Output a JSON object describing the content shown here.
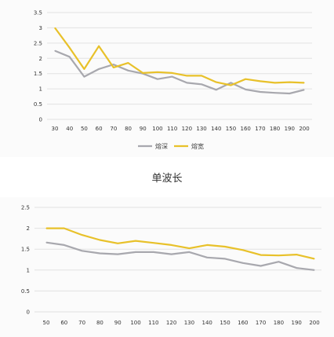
{
  "middle_title": "单波长",
  "colors": {
    "series1": "#a8a8ae",
    "series2": "#e8c12a",
    "grid": "#e2e2e2"
  },
  "chart_data": [
    {
      "type": "line",
      "x": [
        30,
        40,
        50,
        60,
        70,
        80,
        90,
        100,
        110,
        120,
        130,
        140,
        150,
        160,
        170,
        180,
        190,
        200
      ],
      "ylim": [
        0,
        3.5
      ],
      "yticks": [
        0,
        0.5,
        1,
        1.5,
        2,
        2.5,
        3,
        3.5
      ],
      "grid": true,
      "legend_position": "bottom",
      "series": [
        {
          "name": "熔深",
          "values": [
            2.25,
            2.05,
            1.4,
            1.65,
            1.8,
            1.6,
            1.5,
            1.32,
            1.4,
            1.2,
            1.15,
            0.97,
            1.2,
            0.98,
            0.9,
            0.87,
            0.85,
            0.97
          ]
        },
        {
          "name": "熔宽",
          "values": [
            3.0,
            2.35,
            1.65,
            2.4,
            1.7,
            1.85,
            1.52,
            1.55,
            1.52,
            1.43,
            1.43,
            1.22,
            1.12,
            1.32,
            1.25,
            1.2,
            1.22,
            1.2
          ]
        }
      ]
    },
    {
      "type": "line",
      "x": [
        50,
        60,
        70,
        80,
        90,
        100,
        110,
        120,
        130,
        140,
        150,
        160,
        170,
        180,
        190,
        200
      ],
      "ylim": [
        0,
        2.5
      ],
      "yticks": [
        0,
        0.5,
        1,
        1.5,
        2,
        2.5
      ],
      "grid": true,
      "series": [
        {
          "values": [
            1.66,
            1.6,
            1.46,
            1.4,
            1.38,
            1.43,
            1.43,
            1.38,
            1.43,
            1.3,
            1.27,
            1.17,
            1.1,
            1.2,
            1.05,
            1.0
          ]
        },
        {
          "values": [
            2.0,
            2.0,
            1.84,
            1.72,
            1.64,
            1.7,
            1.65,
            1.6,
            1.52,
            1.6,
            1.56,
            1.48,
            1.36,
            1.35,
            1.37,
            1.27
          ]
        }
      ]
    }
  ]
}
